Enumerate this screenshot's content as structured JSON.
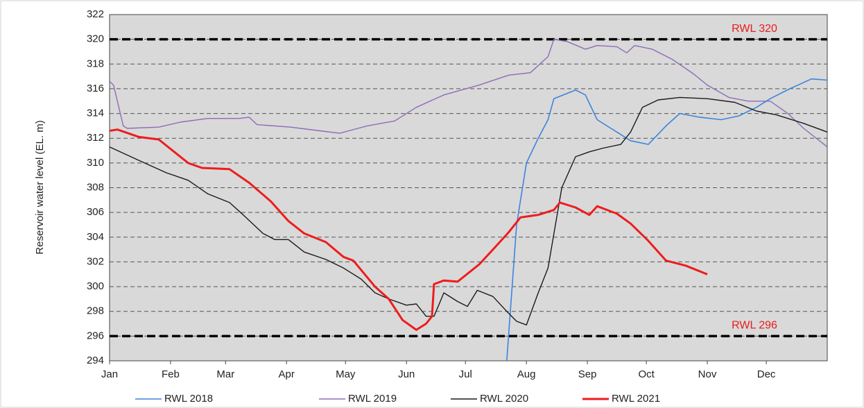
{
  "chart_data": {
    "type": "line",
    "y_label": "Reservoir water level (EL. m)",
    "xlim": [
      0,
      365
    ],
    "xticks": [
      {
        "value": 0,
        "label": "Jan"
      },
      {
        "value": 31,
        "label": "Feb"
      },
      {
        "value": 59,
        "label": "Mar"
      },
      {
        "value": 90,
        "label": "Apr"
      },
      {
        "value": 120,
        "label": "May"
      },
      {
        "value": 151,
        "label": "Jun"
      },
      {
        "value": 181,
        "label": "Jul"
      },
      {
        "value": 212,
        "label": "Aug"
      },
      {
        "value": 243,
        "label": "Sep"
      },
      {
        "value": 273,
        "label": "Oct"
      },
      {
        "value": 304,
        "label": "Nov"
      },
      {
        "value": 334,
        "label": "Dec"
      }
    ],
    "ylim": [
      294,
      322
    ],
    "yticks": [
      294,
      296,
      298,
      300,
      302,
      304,
      306,
      308,
      310,
      312,
      314,
      316,
      318,
      320,
      322
    ],
    "grid": true,
    "reference_lines": [
      {
        "value": 320,
        "label": "RWL 320"
      },
      {
        "value": 296,
        "label": "RWL 296"
      }
    ],
    "series": [
      {
        "name": "RWL 2018",
        "color": "#3c84dc",
        "width": 1.6,
        "x": [
          202,
          207,
          212,
          218,
          223,
          226,
          237,
          242,
          248,
          255,
          265,
          274,
          283,
          290,
          300,
          311,
          320,
          329,
          336,
          346,
          357,
          365
        ],
        "values": [
          294,
          305,
          310,
          312,
          313.5,
          315.2,
          315.9,
          315.5,
          313.5,
          312.8,
          311.8,
          311.5,
          313,
          314,
          313.7,
          313.5,
          313.8,
          314.5,
          315.2,
          316,
          316.8,
          316.7
        ]
      },
      {
        "name": "RWL 2019",
        "color": "#8e6bb8",
        "width": 1.4,
        "x": [
          0,
          2,
          7,
          9,
          25,
          36,
          50,
          66,
          71,
          75,
          92,
          107,
          117,
          131,
          145,
          156,
          170,
          188,
          203,
          214,
          223,
          226,
          233,
          242,
          248,
          258,
          263,
          267,
          276,
          286,
          297,
          304,
          315,
          325,
          336,
          345,
          353,
          365
        ],
        "values": [
          316.6,
          316.3,
          313,
          312.8,
          312.9,
          313.3,
          313.6,
          313.6,
          313.7,
          313.1,
          312.9,
          312.6,
          312.4,
          313,
          313.4,
          314.5,
          315.5,
          316.3,
          317.1,
          317.3,
          318.6,
          320,
          319.8,
          319.2,
          319.5,
          319.4,
          318.9,
          319.5,
          319.2,
          318.4,
          317.2,
          316.3,
          315.3,
          315,
          315,
          314,
          312.8,
          311.3
        ]
      },
      {
        "name": "RWL 2020",
        "color": "#1a1a1a",
        "width": 1.4,
        "x": [
          0,
          15,
          29,
          40,
          50,
          61,
          68,
          78,
          84,
          91,
          99,
          110,
          119,
          128,
          135,
          142,
          151,
          156,
          161,
          165,
          170,
          177,
          182,
          187,
          195,
          202,
          207,
          212,
          218,
          223,
          230,
          237,
          244,
          251,
          260,
          265,
          271,
          279,
          290,
          304,
          318,
          329,
          339,
          353,
          365
        ],
        "values": [
          311.3,
          310.2,
          309.2,
          308.6,
          307.5,
          306.8,
          305.8,
          304.3,
          303.8,
          303.8,
          302.8,
          302.2,
          301.5,
          300.6,
          299.5,
          299,
          298.5,
          298.6,
          297.6,
          297.6,
          299.5,
          298.8,
          298.4,
          299.7,
          299.2,
          298,
          297.2,
          296.9,
          299.5,
          301.5,
          308,
          310.5,
          310.9,
          311.2,
          311.5,
          312.5,
          314.5,
          315.1,
          315.3,
          315.2,
          314.9,
          314.2,
          313.9,
          313.2,
          312.5
        ]
      },
      {
        "name": "RWL 2021",
        "color": "#ee1c1c",
        "width": 3,
        "x": [
          0,
          4,
          15,
          25,
          40,
          47,
          61,
          71,
          82,
          91,
          99,
          110,
          119,
          124,
          135,
          142,
          149,
          156,
          161,
          164,
          165,
          170,
          177,
          188,
          195,
          203,
          209,
          218,
          226,
          229,
          237,
          244,
          248,
          258,
          265,
          274,
          283,
          293,
          304
        ],
        "values": [
          312.6,
          312.7,
          312.1,
          311.9,
          310,
          309.6,
          309.5,
          308.4,
          306.9,
          305.3,
          304.3,
          303.6,
          302.4,
          302.1,
          300,
          299,
          297.3,
          296.5,
          297,
          297.6,
          300.2,
          300.5,
          300.4,
          301.8,
          303,
          304.4,
          305.6,
          305.8,
          306.2,
          306.8,
          306.4,
          305.8,
          306.5,
          305.9,
          305.1,
          303.7,
          302.1,
          301.7,
          301
        ]
      }
    ]
  }
}
